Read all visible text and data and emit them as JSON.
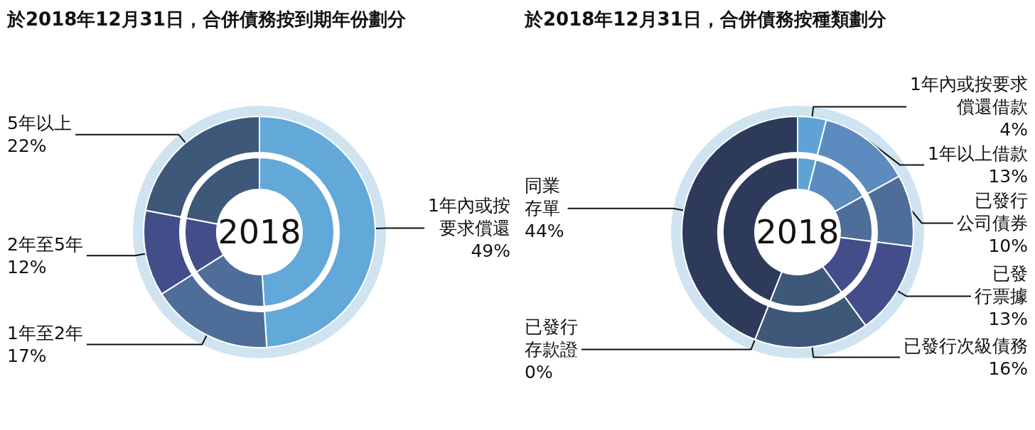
{
  "chart_data": [
    {
      "type": "donut",
      "title": "於2018年12月31日，合併債務按到期年份劃分",
      "annotations": [
        "2018"
      ],
      "categories": [
        "1年內或按要求償還",
        "1年至2年",
        "2年至5年",
        "5年以上"
      ],
      "series": [
        {
          "values": [
            49,
            17,
            12,
            22
          ],
          "value_labels": [
            "49%",
            "17%",
            "12%",
            "22%"
          ],
          "colors": [
            "#62a8d8",
            "#4e6d99",
            "#434d8a",
            "#3d5878"
          ]
        },
        {
          "values": [
            49,
            17,
            12,
            22
          ],
          "colors": [
            "#62a8d8",
            "#4e6d99",
            "#434d8a",
            "#3d5878"
          ]
        }
      ]
    },
    {
      "type": "donut",
      "title": "於2018年12月31日，合併債務按種類劃分",
      "annotations": [
        "2018"
      ],
      "categories": [
        "1年內或按要求償還借款",
        "1年以上借款",
        "已發行公司債券",
        "已發行票據",
        "已發行次級債務",
        "已發行存款證",
        "同業存單"
      ],
      "series": [
        {
          "values": [
            4,
            13,
            10,
            13,
            16,
            0,
            44
          ],
          "value_labels": [
            "4%",
            "13%",
            "10%",
            "13%",
            "16%",
            "0%",
            "44%"
          ],
          "colors": [
            "#5fa3d6",
            "#5b8bbf",
            "#4e6d99",
            "#424d8a",
            "#3d5878",
            "#34466e",
            "#2e3a5a"
          ]
        },
        {
          "values": [
            4,
            13,
            10,
            13,
            16,
            0,
            44
          ],
          "colors": [
            "#5fa3d6",
            "#5b8bbf",
            "#4e6d99",
            "#424d8a",
            "#3d5878",
            "#34466e",
            "#2e3a5a"
          ]
        }
      ]
    }
  ]
}
